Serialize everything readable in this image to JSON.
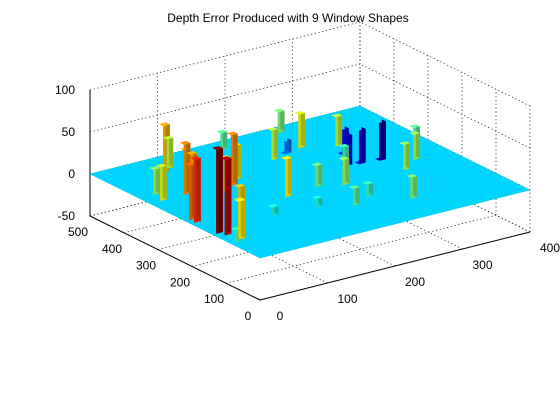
{
  "chart_data": {
    "type": "surface",
    "title": "Depth Error Produced with 9 Window Shapes",
    "xlabel": "",
    "ylabel": "",
    "zlabel": "",
    "x_ticks": [
      "0",
      "100",
      "200",
      "300",
      "400"
    ],
    "y_ticks": [
      "0",
      "100",
      "200",
      "300",
      "400",
      "500"
    ],
    "z_ticks": [
      "-50",
      "0",
      "50",
      "100"
    ],
    "xlim": [
      0,
      400
    ],
    "ylim": [
      0,
      500
    ],
    "zlim": [
      -50,
      100
    ],
    "grid": true,
    "colormap": "jet",
    "baseline_value": 0,
    "series": [
      {
        "values": [
          {
            "x": 10,
            "y": 90,
            "z": 15
          },
          {
            "x": 20,
            "y": 100,
            "z": 45
          },
          {
            "x": 30,
            "y": 120,
            "z": 40
          },
          {
            "x": 40,
            "y": 140,
            "z": 50
          },
          {
            "x": 20,
            "y": 330,
            "z": 40
          },
          {
            "x": 25,
            "y": 360,
            "z": 30
          },
          {
            "x": 15,
            "y": 130,
            "z": 90
          },
          {
            "x": 10,
            "y": 145,
            "z": 100
          },
          {
            "x": 10,
            "y": 210,
            "z": 75
          },
          {
            "x": 10,
            "y": 225,
            "z": 65
          },
          {
            "x": 50,
            "y": 300,
            "z": 55
          },
          {
            "x": 55,
            "y": 330,
            "z": 60
          },
          {
            "x": 60,
            "y": 340,
            "z": 50
          },
          {
            "x": 80,
            "y": 440,
            "z": 55
          },
          {
            "x": 90,
            "y": 450,
            "z": 35
          },
          {
            "x": 100,
            "y": 300,
            "z": 40
          },
          {
            "x": 120,
            "y": 320,
            "z": 60
          },
          {
            "x": 135,
            "y": 340,
            "z": 40
          },
          {
            "x": 150,
            "y": 220,
            "z": 45
          },
          {
            "x": 200,
            "y": 230,
            "z": 25
          },
          {
            "x": 230,
            "y": 210,
            "z": 30
          },
          {
            "x": 200,
            "y": 120,
            "z": 20
          },
          {
            "x": 270,
            "y": 90,
            "z": 25
          },
          {
            "x": 320,
            "y": 210,
            "z": 30
          },
          {
            "x": 350,
            "y": 240,
            "z": 30
          },
          {
            "x": 210,
            "y": 380,
            "z": 35
          },
          {
            "x": 260,
            "y": 400,
            "z": 40
          },
          {
            "x": 300,
            "y": 370,
            "z": 35
          },
          {
            "x": 280,
            "y": 310,
            "z": 15
          },
          {
            "x": 270,
            "y": 480,
            "z": 25
          },
          {
            "x": 340,
            "y": 430,
            "z": -30
          },
          {
            "x": 355,
            "y": 410,
            "z": -40
          },
          {
            "x": 330,
            "y": 400,
            "z": -35
          },
          {
            "x": 390,
            "y": 420,
            "z": -45
          },
          {
            "x": 260,
            "y": 440,
            "z": -15
          },
          {
            "x": 100,
            "y": 160,
            "z": 10
          },
          {
            "x": 160,
            "y": 150,
            "z": 10
          },
          {
            "x": 230,
            "y": 140,
            "z": 15
          },
          {
            "x": 380,
            "y": 300,
            "z": 20
          },
          {
            "x": 180,
            "y": 470,
            "z": 20
          }
        ]
      }
    ]
  }
}
